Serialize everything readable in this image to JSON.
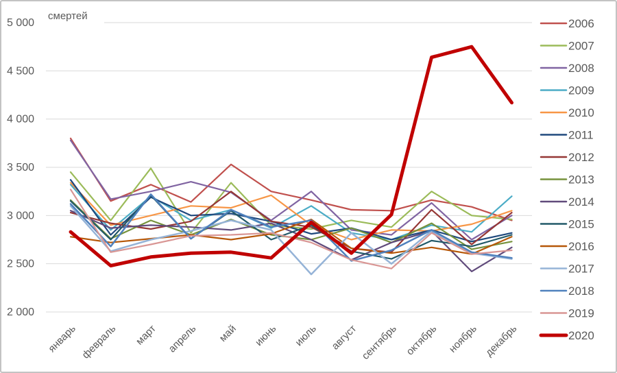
{
  "frame": {
    "background": "#ffffff",
    "border_color": "#c3c3c3"
  },
  "chart_data": {
    "type": "line",
    "title": "",
    "ylabel": "смертей",
    "xlabel": "",
    "ylim": [
      2000,
      5000
    ],
    "ytick_step": 500,
    "ytick_labels": [
      "5 000",
      "4 500",
      "4 000",
      "3 500",
      "3 000",
      "2 500",
      "2 000"
    ],
    "grid": "horizontal-only",
    "gridline_color": "#d9d9d9",
    "text_color": "#595959",
    "legend_position": "right",
    "highlight_color": "#c00000",
    "categories": [
      "январь",
      "февраль",
      "март",
      "апрель",
      "май",
      "июнь",
      "июль",
      "август",
      "сентябрь",
      "октябрь",
      "ноябрь",
      "декабрь"
    ],
    "series": [
      {
        "name": "2006",
        "color": "#C0504D",
        "width": 2.2,
        "values": [
          3800,
          3150,
          3320,
          3140,
          3530,
          3250,
          3160,
          3060,
          3050,
          3160,
          3090,
          2950
        ]
      },
      {
        "name": "2007",
        "color": "#9BBB59",
        "width": 2.2,
        "values": [
          3450,
          2950,
          3490,
          2820,
          3340,
          2900,
          2860,
          2950,
          2880,
          3250,
          3000,
          2960
        ]
      },
      {
        "name": "2008",
        "color": "#8064A2",
        "width": 2.2,
        "values": [
          3780,
          3170,
          3250,
          3350,
          3240,
          2950,
          3250,
          2850,
          2800,
          3130,
          2750,
          3000
        ]
      },
      {
        "name": "2009",
        "color": "#4BACC6",
        "width": 2.2,
        "values": [
          3320,
          2850,
          3200,
          2950,
          3060,
          2870,
          3100,
          2820,
          2750,
          2900,
          2830,
          3200
        ]
      },
      {
        "name": "2010",
        "color": "#F79646",
        "width": 2.2,
        "values": [
          3340,
          2900,
          3000,
          3100,
          3080,
          3210,
          2900,
          2750,
          2850,
          2840,
          2910,
          3050
        ]
      },
      {
        "name": "2011",
        "color": "#1F497D",
        "width": 2.2,
        "values": [
          3370,
          2800,
          3190,
          3000,
          3020,
          2940,
          2810,
          2870,
          2750,
          2850,
          2730,
          2820
        ]
      },
      {
        "name": "2012",
        "color": "#953735",
        "width": 2.2,
        "values": [
          3030,
          2920,
          2860,
          2940,
          3250,
          2940,
          2880,
          2660,
          2620,
          3060,
          2700,
          3030
        ]
      },
      {
        "name": "2013",
        "color": "#76923C",
        "width": 2.2,
        "values": [
          3160,
          2760,
          2950,
          2800,
          2960,
          2800,
          2750,
          2870,
          2720,
          2920,
          2650,
          2730
        ]
      },
      {
        "name": "2014",
        "color": "#604A7B",
        "width": 2.2,
        "values": [
          3050,
          2870,
          2900,
          2880,
          2850,
          2920,
          2750,
          2540,
          2720,
          2840,
          2420,
          2670
        ]
      },
      {
        "name": "2015",
        "color": "#215968",
        "width": 2.2,
        "values": [
          3150,
          2750,
          3210,
          2760,
          3050,
          2750,
          2900,
          2630,
          2550,
          2740,
          2680,
          2800
        ]
      },
      {
        "name": "2016",
        "color": "#B65708",
        "width": 2.2,
        "values": [
          2780,
          2720,
          2760,
          2800,
          2750,
          2810,
          2960,
          2660,
          2610,
          2670,
          2600,
          2780
        ]
      },
      {
        "name": "2017",
        "color": "#95B3D7",
        "width": 2.5,
        "values": [
          3100,
          2630,
          2750,
          2840,
          2950,
          2850,
          2390,
          2820,
          2500,
          2840,
          2610,
          2550
        ]
      },
      {
        "name": "2018",
        "color": "#4F81BD",
        "width": 2.5,
        "values": [
          3120,
          2680,
          3220,
          2760,
          3060,
          2880,
          2950,
          2530,
          2640,
          2850,
          2620,
          2560
        ]
      },
      {
        "name": "2019",
        "color": "#D99694",
        "width": 2.2,
        "values": [
          3270,
          2620,
          2700,
          2790,
          2800,
          2820,
          2720,
          2540,
          2450,
          2820,
          2600,
          2640
        ]
      },
      {
        "name": "2020",
        "color": "#C00000",
        "width": 5,
        "values": [
          2830,
          2480,
          2570,
          2610,
          2620,
          2560,
          2930,
          2610,
          3010,
          4640,
          4750,
          4170
        ]
      }
    ]
  }
}
